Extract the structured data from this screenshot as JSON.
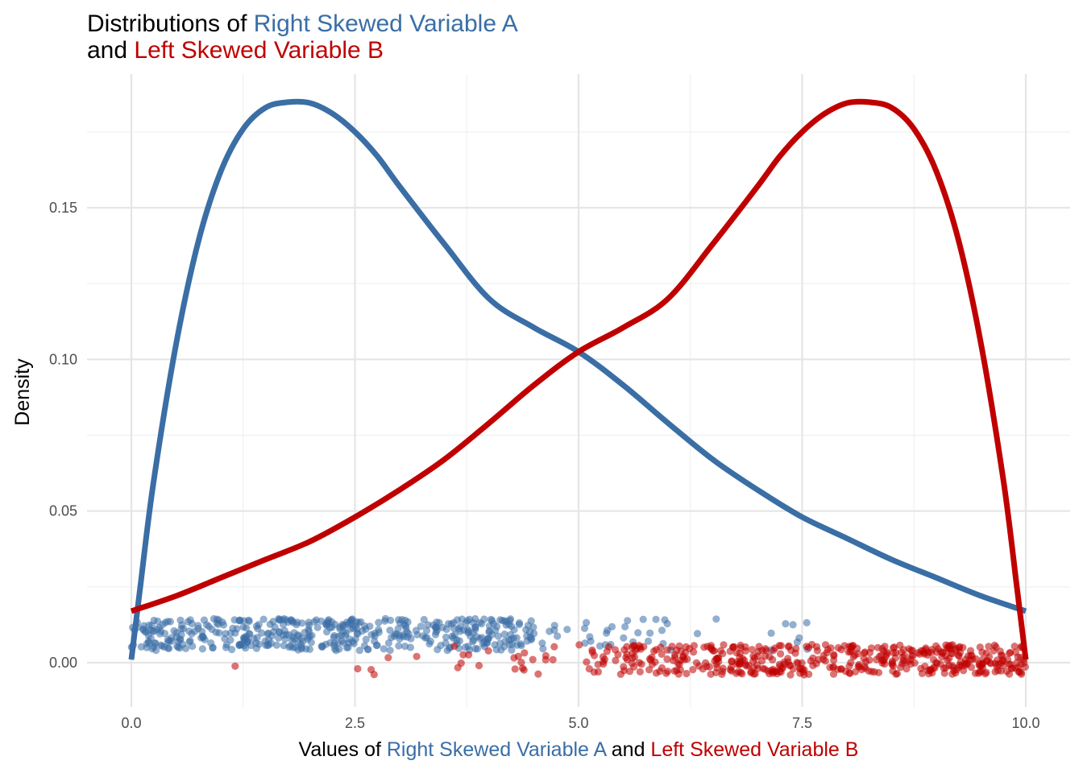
{
  "chart_data": {
    "type": "line",
    "title": {
      "line1_prefix": "Distributions of ",
      "line1_highlight": "Right Skewed Variable A",
      "line2_prefix": "and ",
      "line2_highlight": "Left Skewed Variable B"
    },
    "xlabel": {
      "prefix": "Values of ",
      "a": "Right Skewed Variable A",
      "middle": " and ",
      "b": "Left Skewed Variable B"
    },
    "ylabel": "Density",
    "xlim": [
      -0.3,
      10.3
    ],
    "ylim": [
      -0.012,
      0.195
    ],
    "x_ticks": [
      {
        "value": 0,
        "label": "0.0"
      },
      {
        "value": 2.5,
        "label": "2.5"
      },
      {
        "value": 5,
        "label": "5.0"
      },
      {
        "value": 7.5,
        "label": "7.5"
      },
      {
        "value": 10,
        "label": "10.0"
      }
    ],
    "y_ticks": [
      {
        "value": 0,
        "label": "0.00"
      },
      {
        "value": 0.05,
        "label": "0.05"
      },
      {
        "value": 0.1,
        "label": "0.10"
      },
      {
        "value": 0.15,
        "label": "0.15"
      }
    ],
    "x_minor": [
      1.25,
      3.75,
      6.25,
      8.75
    ],
    "y_minor": [
      0.025,
      0.075,
      0.125,
      0.175
    ],
    "grid": true,
    "colors": {
      "a": "#3A6EA5",
      "b": "#C00000"
    },
    "series": [
      {
        "key": "a",
        "color": "#3A6EA5",
        "x": [
          0.0,
          0.1,
          0.25,
          0.5,
          0.75,
          1.0,
          1.25,
          1.5,
          1.75,
          2.0,
          2.25,
          2.5,
          2.75,
          3.0,
          3.5,
          4.0,
          4.5,
          5.0,
          5.5,
          6.0,
          6.5,
          7.0,
          7.5,
          8.0,
          8.5,
          9.0,
          9.5,
          10.0
        ],
        "values": [
          0.001,
          0.025,
          0.06,
          0.105,
          0.139,
          0.162,
          0.176,
          0.183,
          0.1848,
          0.1845,
          0.181,
          0.175,
          0.167,
          0.157,
          0.138,
          0.12,
          0.1105,
          0.1025,
          0.0915,
          0.079,
          0.067,
          0.057,
          0.048,
          0.041,
          0.034,
          0.028,
          0.022,
          0.017
        ]
      },
      {
        "key": "b",
        "color": "#C00000",
        "x": [
          0.0,
          0.5,
          1.0,
          1.5,
          2.0,
          2.5,
          3.0,
          3.5,
          4.0,
          4.5,
          5.0,
          5.5,
          6.0,
          6.5,
          7.0,
          7.25,
          7.5,
          7.75,
          8.0,
          8.25,
          8.5,
          8.75,
          9.0,
          9.25,
          9.5,
          9.75,
          9.9,
          10.0
        ],
        "values": [
          0.017,
          0.022,
          0.028,
          0.034,
          0.04,
          0.048,
          0.057,
          0.067,
          0.079,
          0.0915,
          0.1025,
          0.1105,
          0.12,
          0.138,
          0.157,
          0.167,
          0.175,
          0.181,
          0.1845,
          0.1848,
          0.183,
          0.176,
          0.162,
          0.139,
          0.105,
          0.06,
          0.025,
          0.001
        ]
      }
    ],
    "jitter_points": {
      "count_per_series": 500,
      "alpha": 0.55,
      "a": {
        "y_range": [
          0.004,
          0.0145
        ],
        "x_distribution": "right-skewed on [0, 10]"
      },
      "b": {
        "y_range": [
          -0.004,
          0.006
        ],
        "x_distribution": "left-skewed on [0, 10]"
      }
    }
  }
}
